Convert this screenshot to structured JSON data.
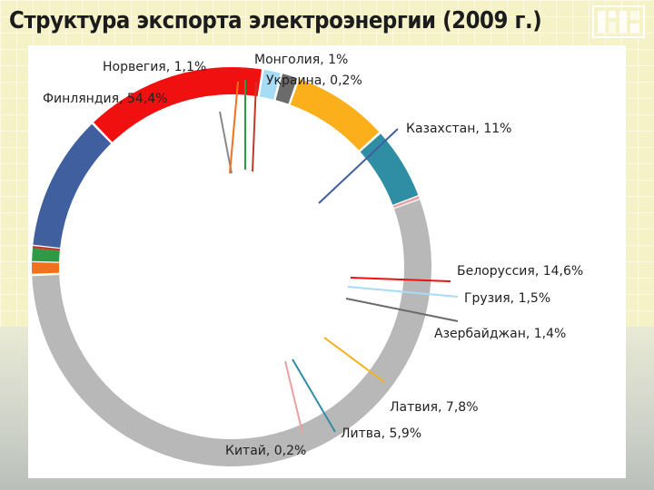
{
  "slide": {
    "title": "Структура экспорта электроэнергии (2009 г.)"
  },
  "chart_data": {
    "type": "pie",
    "donut": true,
    "title": "Структура экспорта электроэнергии (2009 г.)",
    "series": [
      {
        "name": "",
        "slices": [
          {
            "label": "Казахстан, 11%",
            "value": 11,
            "color": "#3f5f9e"
          },
          {
            "label": "Белоруссия, 14,6%",
            "value": 14.6,
            "color": "#f01010"
          },
          {
            "label": "Грузия, 1,5%",
            "value": 1.5,
            "color": "#a6dcf5"
          },
          {
            "label": "Азербайджан, 1,4%",
            "value": 1.4,
            "color": "#6b6b6b"
          },
          {
            "label": "Латвия, 7,8%",
            "value": 7.8,
            "color": "#fbb01b"
          },
          {
            "label": "Литва, 5,9%",
            "value": 5.9,
            "color": "#2f8ea3"
          },
          {
            "label": "Китай, 0,2%",
            "value": 0.2,
            "color": "#e9a1a1"
          },
          {
            "label": "Финляндия, 54,4%",
            "value": 54.4,
            "color": "#b8b8b8"
          },
          {
            "label": "Норвегия, 1,1%",
            "value": 1.1,
            "color": "#f2711c"
          },
          {
            "label": "Монголия, 1%",
            "value": 1,
            "color": "#2e9a45"
          },
          {
            "label": "Украина, 0,2%",
            "value": 0.2,
            "color": "#c0392b"
          }
        ]
      }
    ],
    "legend": "none"
  }
}
